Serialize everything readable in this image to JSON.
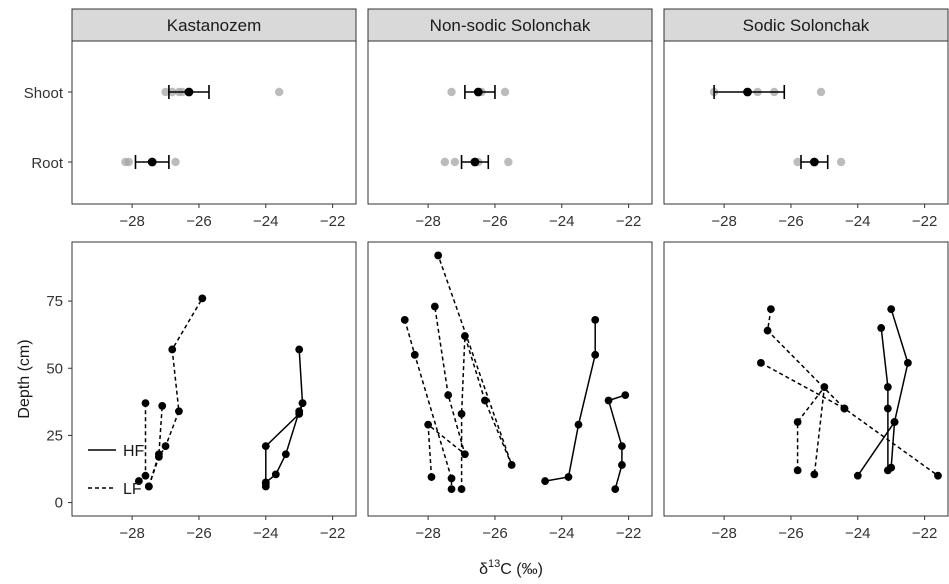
{
  "chart_data": {
    "type": "faceted-scatter-line",
    "facets": [
      "Kastanozem",
      "Non-sodic Solonchak",
      "Sodic Solonchak"
    ],
    "x_ticks": [
      -28,
      -26,
      -24,
      -22
    ],
    "x_range": [
      -29.8,
      -21.3
    ],
    "xlabel": "δ13C (‰)",
    "xlabel_parts": {
      "delta": "δ",
      "sup": "13",
      "rest": "C (‰)"
    },
    "top_row": {
      "categories": [
        "Shoot",
        "Root"
      ],
      "points": [
        {
          "Shoot": [
            -26.8,
            -27.0,
            -26.6,
            -26.5,
            -23.6
          ],
          "Root": [
            -28.1,
            -28.2,
            -26.7
          ]
        },
        {
          "Shoot": [
            -27.3,
            -25.7,
            -26.4
          ],
          "Root": [
            -27.5,
            -27.2,
            -26.5,
            -25.6
          ]
        },
        {
          "Shoot": [
            -28.3,
            -27.0,
            -26.5,
            -25.1
          ],
          "Root": [
            -25.8,
            -24.5
          ]
        }
      ],
      "summary": [
        {
          "Shoot": {
            "mean": -26.3,
            "lo": -26.9,
            "hi": -25.7
          },
          "Root": {
            "mean": -27.4,
            "lo": -27.9,
            "hi": -26.9
          }
        },
        {
          "Shoot": {
            "mean": -26.5,
            "lo": -26.9,
            "hi": -26.0
          },
          "Root": {
            "mean": -26.6,
            "lo": -27.0,
            "hi": -26.2
          }
        },
        {
          "Shoot": {
            "mean": -27.3,
            "lo": -28.3,
            "hi": -26.2
          },
          "Root": {
            "mean": -25.3,
            "lo": -25.7,
            "hi": -24.9
          }
        }
      ]
    },
    "bottom_row": {
      "ylabel": "Depth (cm)",
      "y_ticks": [
        0,
        25,
        50,
        75
      ],
      "y_range": [
        97,
        -5
      ],
      "legend": [
        {
          "label": "HF",
          "dash": "solid"
        },
        {
          "label": "LF",
          "dash": "dashed"
        }
      ],
      "profiles": [
        [
          {
            "type": "HF",
            "points": [
              [
                -24.0,
                6
              ],
              [
                -24.0,
                7.5
              ],
              [
                -23.7,
                10.5
              ],
              [
                -23.4,
                18
              ],
              [
                -23.0,
                34
              ],
              [
                -22.9,
                37
              ],
              [
                -23.0,
                57
              ]
            ]
          },
          {
            "type": "HF",
            "points": [
              [
                -24.0,
                7
              ],
              [
                -24.0,
                21
              ],
              [
                -23.0,
                33
              ],
              [
                -22.9,
                37
              ]
            ]
          },
          {
            "type": "LF",
            "points": [
              [
                -27.8,
                8
              ],
              [
                -27.6,
                10
              ],
              [
                -27.6,
                37
              ]
            ]
          },
          {
            "type": "LF",
            "points": [
              [
                -27.5,
                6
              ],
              [
                -27.2,
                17
              ],
              [
                -27.0,
                21
              ],
              [
                -26.6,
                34
              ],
              [
                -26.8,
                57
              ],
              [
                -25.9,
                76
              ]
            ]
          },
          {
            "type": "LF",
            "points": [
              [
                -27.5,
                6
              ],
              [
                -27.2,
                18
              ],
              [
                -27.1,
                36
              ]
            ]
          }
        ],
        [
          {
            "type": "HF",
            "points": [
              [
                -24.5,
                8
              ],
              [
                -23.8,
                9.5
              ],
              [
                -23.5,
                29
              ],
              [
                -23.0,
                55
              ],
              [
                -23.0,
                68
              ]
            ]
          },
          {
            "type": "HF",
            "points": [
              [
                -22.4,
                5
              ],
              [
                -22.2,
                14
              ],
              [
                -22.2,
                21
              ],
              [
                -22.6,
                38
              ],
              [
                -22.1,
                40
              ]
            ]
          },
          {
            "type": "LF",
            "points": [
              [
                -28.7,
                68
              ],
              [
                -28.4,
                55
              ],
              [
                -27.3,
                9
              ],
              [
                -27.3,
                5
              ]
            ]
          },
          {
            "type": "LF",
            "points": [
              [
                -27.9,
                9.5
              ],
              [
                -28.0,
                29
              ],
              [
                -26.9,
                18
              ],
              [
                -27.4,
                40
              ],
              [
                -27.8,
                73
              ]
            ]
          },
          {
            "type": "LF",
            "points": [
              [
                -27.0,
                5
              ],
              [
                -27.0,
                33
              ],
              [
                -26.9,
                62
              ],
              [
                -26.3,
                38
              ],
              [
                -25.5,
                14
              ],
              [
                -27.7,
                92
              ]
            ]
          }
        ],
        [
          {
            "type": "HF",
            "points": [
              [
                -23.1,
                12
              ],
              [
                -23.1,
                35
              ],
              [
                -23.1,
                43
              ],
              [
                -23.3,
                65
              ]
            ]
          },
          {
            "type": "HF",
            "points": [
              [
                -23.0,
                13
              ],
              [
                -22.9,
                30
              ],
              [
                -22.5,
                52
              ],
              [
                -23.0,
                72
              ]
            ]
          },
          {
            "type": "HF",
            "points": [
              [
                -24.0,
                10
              ],
              [
                -22.9,
                30
              ]
            ]
          },
          {
            "type": "LF",
            "points": [
              [
                -25.8,
                12
              ],
              [
                -25.8,
                30
              ],
              [
                -25.0,
                43
              ],
              [
                -25.3,
                10.5
              ]
            ]
          },
          {
            "type": "LF",
            "points": [
              [
                -26.9,
                52
              ],
              [
                -24.4,
                35
              ],
              [
                -21.6,
                10
              ]
            ]
          },
          {
            "type": "LF",
            "points": [
              [
                -26.6,
                72
              ],
              [
                -26.7,
                64
              ],
              [
                -24.4,
                35
              ]
            ]
          }
        ]
      ]
    }
  }
}
